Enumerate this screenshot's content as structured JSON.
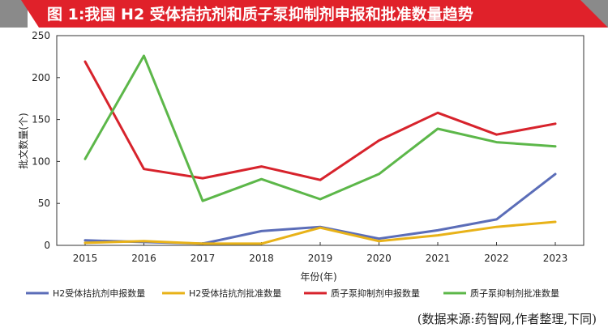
{
  "title": "图 1:我国 H2 受体拮抗剂和质子泵抑制剂申报和批准数量趋势",
  "source": "(数据来源:药智网,作者整理,下同)",
  "colors": {
    "title_bg": "#e0212a",
    "title_fg": "#ffffff",
    "corner": "#8a8a8a"
  },
  "chart_data": {
    "type": "line",
    "xlabel": "年份(年)",
    "ylabel": "批文数量(个)",
    "ylim": [
      0,
      250
    ],
    "yticks": [
      0,
      50,
      100,
      150,
      200,
      250
    ],
    "grid": false,
    "legend_position": "bottom",
    "x": [
      "2015",
      "2016",
      "2017",
      "2018",
      "2019",
      "2020",
      "2021",
      "2022",
      "2023"
    ],
    "series": [
      {
        "name": "H2受体拮抗剂申报数量",
        "color": "#5b6db8",
        "values": [
          6,
          4,
          2,
          17,
          22,
          8,
          18,
          31,
          85
        ]
      },
      {
        "name": "H2受体拮抗剂批准数量",
        "color": "#e8b218",
        "values": [
          3,
          5,
          2,
          2,
          21,
          5,
          12,
          22,
          28
        ]
      },
      {
        "name": "质子泵抑制剂申报数量",
        "color": "#d7232c",
        "values": [
          219,
          91,
          80,
          94,
          78,
          125,
          158,
          132,
          145
        ]
      },
      {
        "name": "质子泵抑制剂批准数量",
        "color": "#5cb749",
        "values": [
          103,
          226,
          53,
          79,
          55,
          85,
          139,
          123,
          118
        ]
      }
    ]
  }
}
